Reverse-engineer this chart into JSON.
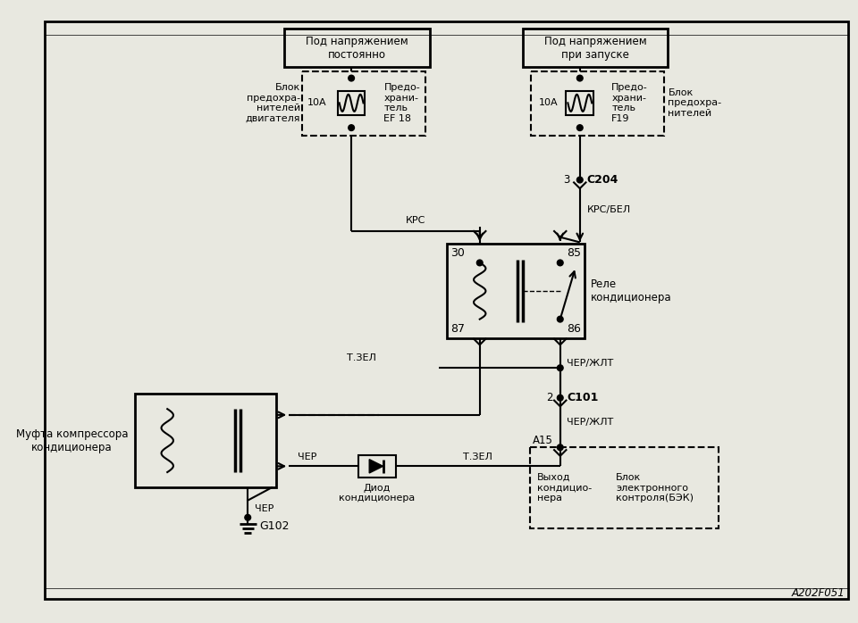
{
  "bg_color": "#e8e8e0",
  "line_color": "#000000",
  "fig_width": 9.6,
  "fig_height": 6.98,
  "title": "A202F051",
  "label_pod_napr_post": "Под напряжением\nпостоянно",
  "label_pod_napr_zapusk": "Под напряжением\nпри запуске",
  "label_blok_pred_dvig": "Блок\nпредохра-\nнителей\nдвигателя",
  "label_pred_EF18": "Предо-\nхрани-\nтель\nEF 18",
  "label_10A_left": "10А",
  "label_pred_F19": "Предо-\nхрани-\nтель\nF19",
  "label_10A_right": "10А",
  "label_blok_pred_right": "Блок\nпредохра-\nнителей",
  "label_KPC": "КРС",
  "label_KPC_BEL": "КРС/БЕЛ",
  "label_3": "3",
  "label_C204": "C204",
  "label_30": "30",
  "label_85": "85",
  "label_87": "87",
  "label_86": "86",
  "label_rele": "Реле\nкондиционера",
  "label_mufta": "Муфта компрессора\nкондиционера",
  "label_TZEL_top": "Т.ЗЕЛ",
  "label_TZEL_diod": "Т.ЗЕЛ",
  "label_CHER_top": "ЧЕР",
  "label_CHER_gnd": "ЧЕР",
  "label_diod": "Диод\nкондиционера",
  "label_G102": "G102",
  "label_CHERZLT_top": "ЧЕР/ЖЛТ",
  "label_CHERZLT_bot": "ЧЕР/ЖЛТ",
  "label_2": "2",
  "label_C101": "C101",
  "label_A15": "A15",
  "label_vyhod": "Выход\nкондицио-\nнера",
  "label_BEK": "Блок\nэлектронного\nконтроля(БЭК)"
}
